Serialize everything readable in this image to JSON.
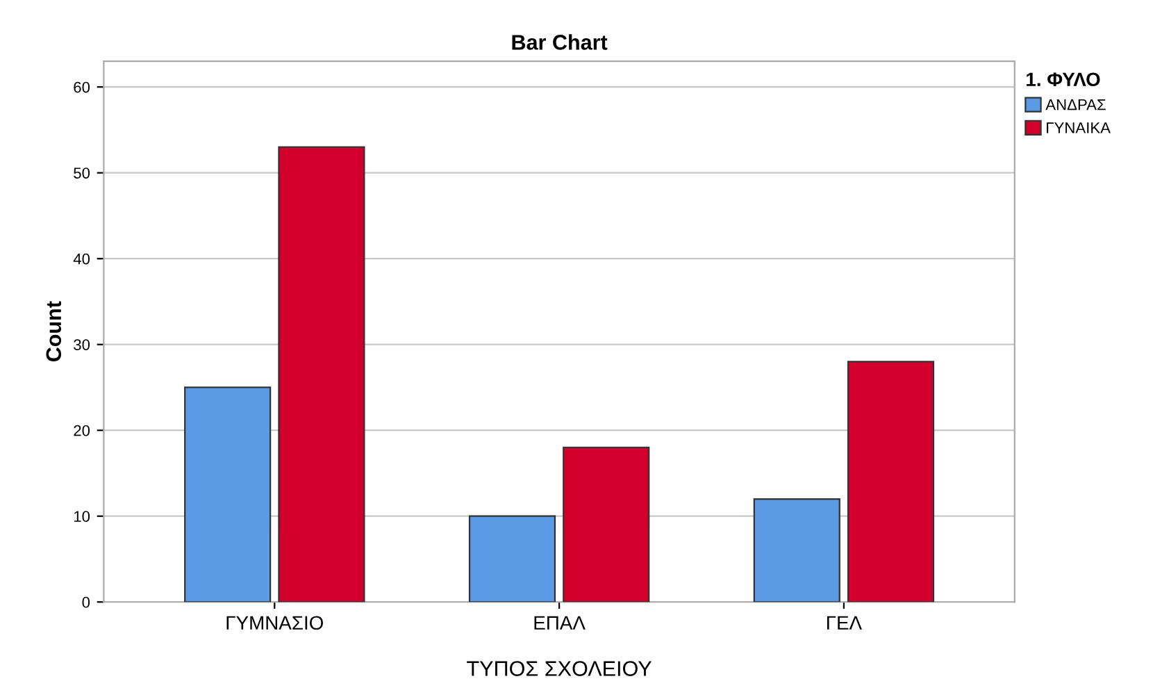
{
  "chart_data": {
    "type": "bar",
    "title": "Bar Chart",
    "xlabel": "ΤΥΠΟΣ ΣΧΟΛΕΙΟΥ",
    "ylabel": "Count",
    "legend_title": "1. ΦΥΛΟ",
    "categories": [
      "ΓΥΜΝΑΣΙΟ",
      "ΕΠΑΛ",
      "ΓΕΛ"
    ],
    "series": [
      {
        "name": "ΑΝΔΡΑΣ",
        "color": "#5b9be6",
        "values": [
          25,
          10,
          12
        ]
      },
      {
        "name": "ΓΥΝΑΙΚΑ",
        "color": "#d3002e",
        "values": [
          53,
          18,
          28
        ]
      }
    ],
    "ylim": [
      0,
      63
    ],
    "yticks": [
      0,
      10,
      20,
      30,
      40,
      50,
      60
    ],
    "grid": "y",
    "legend": "top right"
  }
}
